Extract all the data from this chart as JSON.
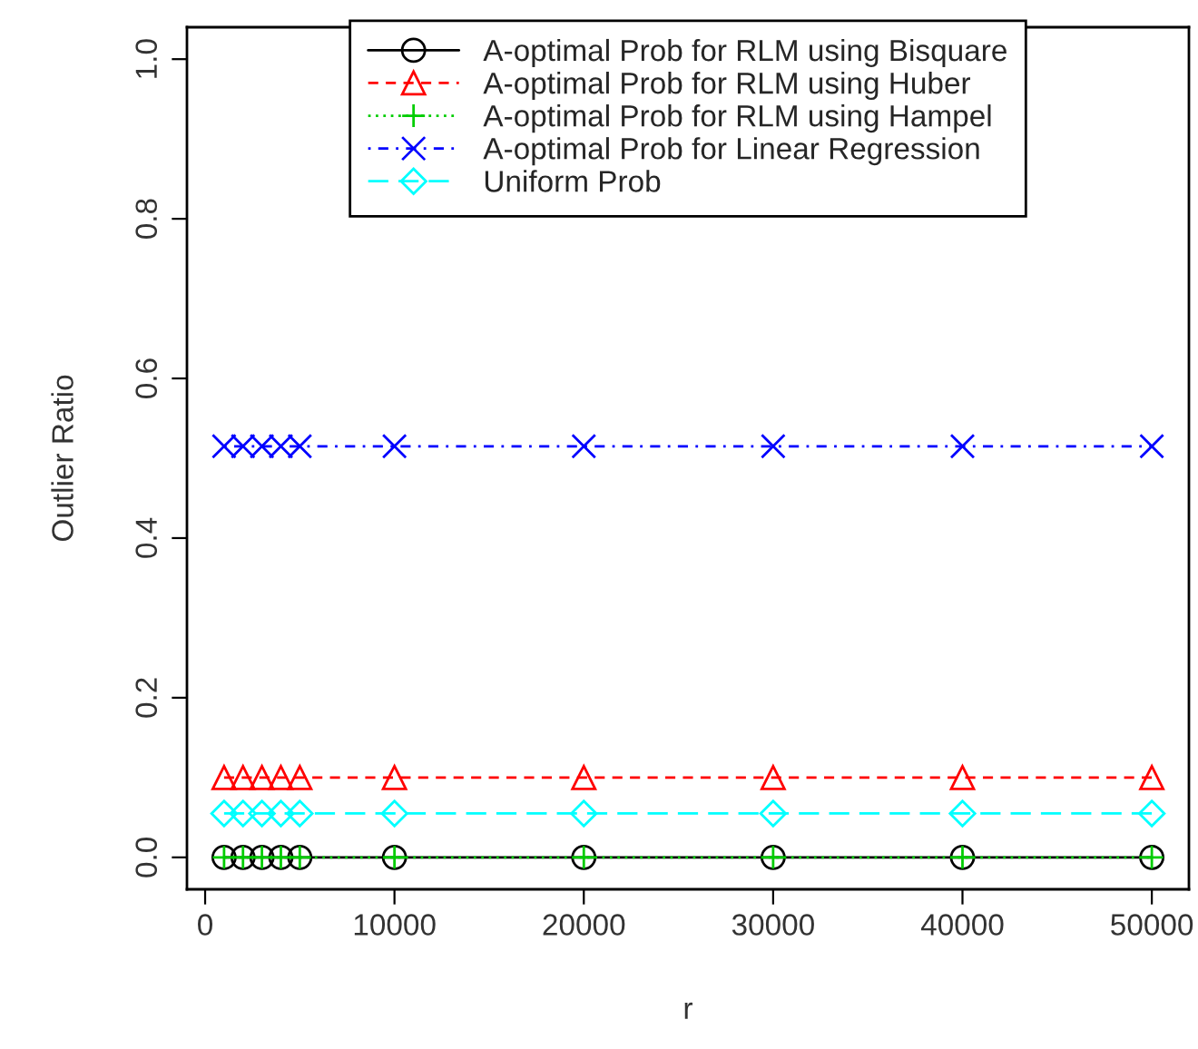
{
  "chart_data": {
    "type": "line",
    "xlabel": "r",
    "ylabel": "Outlier Ratio",
    "x": [
      1000,
      2000,
      3000,
      4000,
      5000,
      10000,
      20000,
      30000,
      40000,
      50000
    ],
    "series": [
      {
        "name": "A-optimal Prob for RLM using Bisquare",
        "color": "#000000",
        "marker": "circle",
        "line_style": "solid",
        "values": [
          0,
          0,
          0,
          0,
          0,
          0,
          0,
          0,
          0,
          0
        ]
      },
      {
        "name": "A-optimal Prob for RLM using Huber",
        "color": "#ff0000",
        "marker": "triangle",
        "line_style": "dashed",
        "values": [
          0.1,
          0.1,
          0.1,
          0.1,
          0.1,
          0.1,
          0.1,
          0.1,
          0.1,
          0.1
        ]
      },
      {
        "name": "A-optimal Prob for RLM using Hampel",
        "color": "#00cd00",
        "marker": "plus",
        "line_style": "dotted",
        "values": [
          0,
          0,
          0,
          0,
          0,
          0,
          0,
          0,
          0,
          0
        ]
      },
      {
        "name": "A-optimal Prob for Linear Regression",
        "color": "#0000ff",
        "marker": "cross",
        "line_style": "dashdot",
        "values": [
          0.515,
          0.515,
          0.515,
          0.515,
          0.515,
          0.515,
          0.515,
          0.515,
          0.515,
          0.515
        ]
      },
      {
        "name": "Uniform Prob",
        "color": "#00ffff",
        "marker": "diamond",
        "line_style": "longdash",
        "values": [
          0.055,
          0.055,
          0.055,
          0.055,
          0.055,
          0.055,
          0.055,
          0.055,
          0.055,
          0.055
        ]
      }
    ],
    "xlim": [
      -960,
      51960
    ],
    "xticks": [
      0,
      10000,
      20000,
      30000,
      40000,
      50000
    ],
    "ylim": [
      -0.04,
      1.04
    ],
    "yticks": [
      {
        "value": 0,
        "label": "0.0"
      },
      {
        "value": 0.2,
        "label": "0.2"
      },
      {
        "value": 0.4,
        "label": "0.4"
      },
      {
        "value": 0.6,
        "label": "0.6"
      },
      {
        "value": 0.8,
        "label": "0.8"
      },
      {
        "value": 1,
        "label": "1.0"
      }
    ],
    "grid": false,
    "legend": "top"
  }
}
